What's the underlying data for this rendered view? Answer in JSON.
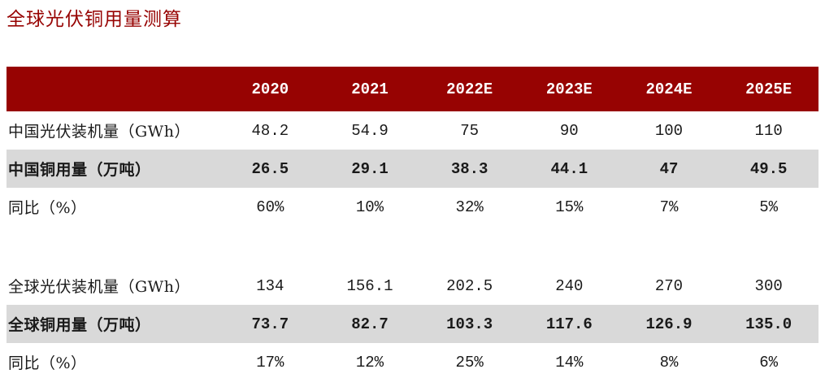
{
  "title": "全球光伏铜用量测算",
  "colors": {
    "accent_red": "#970302",
    "header_bg": "#970302",
    "header_text": "#ffffff",
    "highlight_row_bg": "#d9d9d9",
    "body_text": "#1a1a1a"
  },
  "table": {
    "columns": [
      "",
      "2020",
      "2021",
      "2022E",
      "2023E",
      "2024E",
      "2025E"
    ],
    "rows": [
      {
        "label": "中国光伏装机量（GWh）",
        "values": [
          "48.2",
          "54.9",
          "75",
          "90",
          "100",
          "110"
        ],
        "style": "normal"
      },
      {
        "label": "中国铜用量（万吨）",
        "values": [
          "26.5",
          "29.1",
          "38.3",
          "44.1",
          "47",
          "49.5"
        ],
        "style": "highlight"
      },
      {
        "label": "同比（%）",
        "values": [
          "60%",
          "10%",
          "32%",
          "15%",
          "7%",
          "5%"
        ],
        "style": "normal"
      },
      {
        "label": "全球光伏装机量（GWh）",
        "values": [
          "134",
          "156.1",
          "202.5",
          "240",
          "270",
          "300"
        ],
        "style": "normal"
      },
      {
        "label": "全球铜用量（万吨）",
        "values": [
          "73.7",
          "82.7",
          "103.3",
          "117.6",
          "126.9",
          "135.0"
        ],
        "style": "highlight"
      },
      {
        "label": "同比（%）",
        "values": [
          "17%",
          "12%",
          "25%",
          "14%",
          "8%",
          "6%"
        ],
        "style": "normal"
      }
    ]
  },
  "chart_data": {
    "type": "table",
    "title": "全球光伏铜用量测算",
    "categories": [
      "2020",
      "2021",
      "2022E",
      "2023E",
      "2024E",
      "2025E"
    ],
    "series": [
      {
        "name": "中国光伏装机量（GWh）",
        "values": [
          48.2,
          54.9,
          75,
          90,
          100,
          110
        ]
      },
      {
        "name": "中国铜用量（万吨）",
        "values": [
          26.5,
          29.1,
          38.3,
          44.1,
          47,
          49.5
        ]
      },
      {
        "name": "中国同比（%）",
        "values": [
          60,
          10,
          32,
          15,
          7,
          5
        ]
      },
      {
        "name": "全球光伏装机量（GWh）",
        "values": [
          134,
          156.1,
          202.5,
          240,
          270,
          300
        ]
      },
      {
        "name": "全球铜用量（万吨）",
        "values": [
          73.7,
          82.7,
          103.3,
          117.6,
          126.9,
          135.0
        ]
      },
      {
        "name": "全球同比（%）",
        "values": [
          17,
          12,
          25,
          14,
          8,
          6
        ]
      }
    ]
  }
}
